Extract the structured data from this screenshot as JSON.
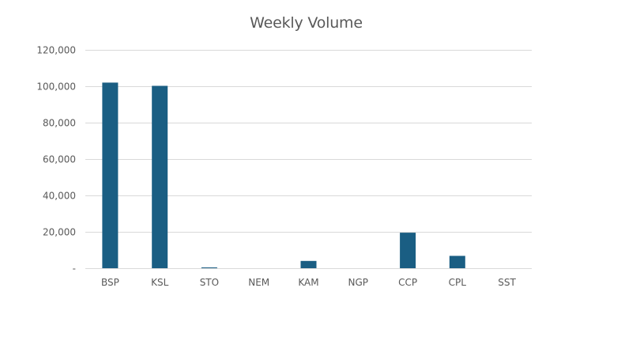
{
  "chart_data": {
    "type": "bar",
    "title": "Weekly Volume",
    "xlabel": "",
    "ylabel": "",
    "categories": [
      "BSP",
      "KSL",
      "STO",
      "NEM",
      "KAM",
      "NGP",
      "CCP",
      "CPL",
      "SST"
    ],
    "values": [
      102000,
      100200,
      400,
      0,
      4000,
      0,
      19500,
      6800,
      0
    ],
    "ylim": [
      0,
      120000
    ],
    "y_ticks": [
      "-",
      "20,000",
      "40,000",
      "60,000",
      "80,000",
      "100,000",
      "120,000"
    ],
    "y_tick_values": [
      0,
      20000,
      40000,
      60000,
      80000,
      100000,
      120000
    ],
    "grid": true,
    "legend": "none",
    "bar_color": "#1a5e83"
  }
}
